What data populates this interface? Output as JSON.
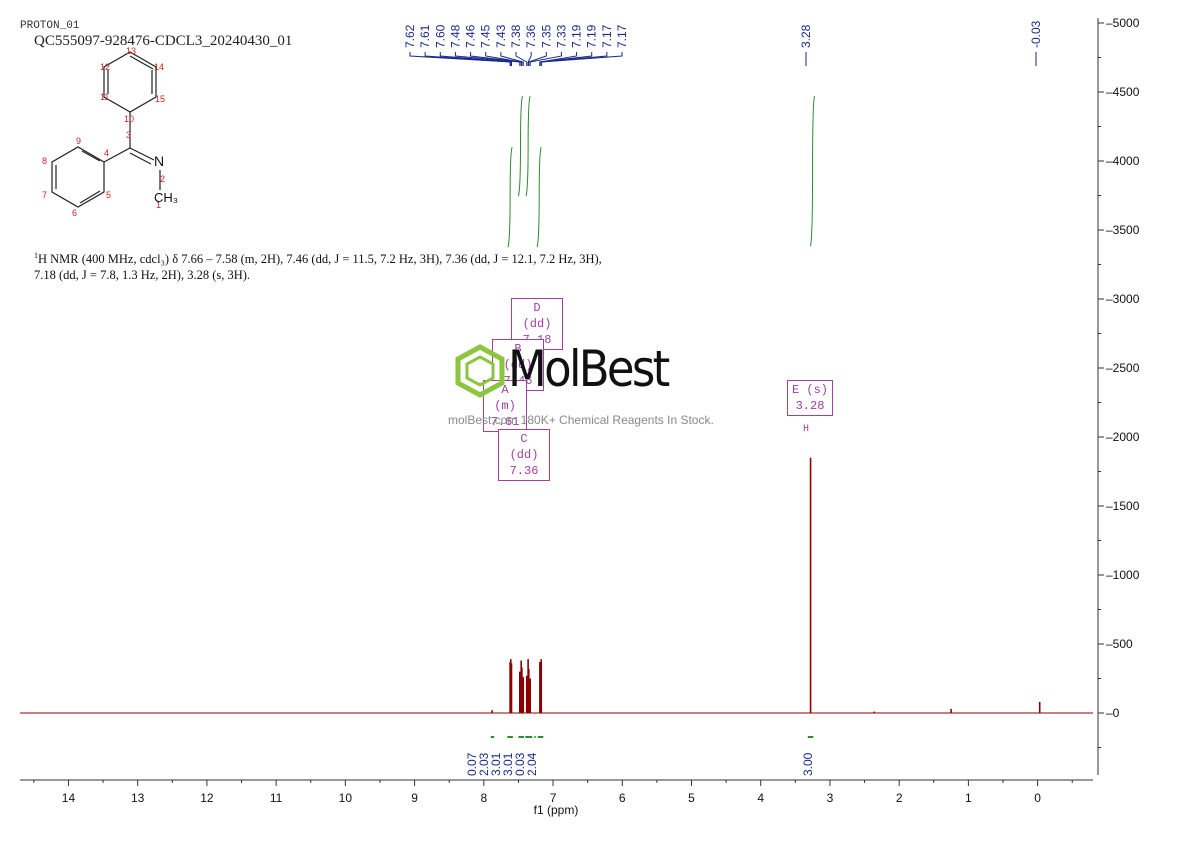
{
  "header": {
    "experiment": "PROTON_01",
    "sample_id": "QC555097-928476-CDCL3_20240430_01"
  },
  "nmr_description": {
    "nucleus_sup": "1",
    "text": "H NMR (400 MHz, cdcl₃) δ 7.66 – 7.58 (m, 2H), 7.46 (dd, J = 11.5, 7.2 Hz, 3H), 7.36 (dd, J = 12.1, 7.2 Hz, 3H), 7.18 (dd, J = 7.8, 1.3 Hz, 2H), 3.28 (s, 3H)."
  },
  "structure": {
    "atom_labels": [
      "1",
      "2",
      "3",
      "4",
      "5",
      "6",
      "7",
      "8",
      "9",
      "10",
      "11",
      "12",
      "13",
      "14",
      "15"
    ],
    "heteroatom": "N",
    "methyl": "CH₃"
  },
  "multiplet_boxes": [
    {
      "id": "D",
      "label": "D (dd)",
      "shift": "7.18"
    },
    {
      "id": "B",
      "label": "B (dd)",
      "shift": "7.46"
    },
    {
      "id": "A",
      "label": "A (m)",
      "shift": "7.61"
    },
    {
      "id": "C",
      "label": "C (dd)",
      "shift": "7.36"
    },
    {
      "id": "E",
      "label": "E (s)",
      "shift": "3.28"
    }
  ],
  "watermark": {
    "brand": "MolBest",
    "tagline": "molBest.com 180K+ Chemical Reagents In Stock."
  },
  "colors": {
    "spectrum": "#8b0000",
    "peak_labels": "#1a2a8a",
    "integral": "#2e8b2e",
    "boxes": "#a040a0",
    "atom_numbers": "#cc2222",
    "watermark_green": "#8cc63f"
  },
  "chart_data": {
    "type": "line",
    "title": "",
    "xlabel": "f1 (ppm)",
    "ylabel": "",
    "x_reversed": true,
    "xlim": [
      14.7,
      -0.8
    ],
    "ylim": [
      -500,
      5000
    ],
    "x_ticks": [
      14,
      13,
      12,
      11,
      10,
      9,
      8,
      7,
      6,
      5,
      4,
      3,
      2,
      1,
      0
    ],
    "y_ticks": [
      0,
      500,
      1000,
      1500,
      2000,
      2500,
      3000,
      3500,
      4000,
      4500,
      5000
    ],
    "peak_labels": [
      "7.62",
      "7.61",
      "7.60",
      "7.48",
      "7.46",
      "7.45",
      "7.43",
      "7.38",
      "7.36",
      "7.35",
      "7.33",
      "7.19",
      "7.19",
      "7.17",
      "7.17",
      "3.28",
      "-0.03"
    ],
    "peaks": [
      {
        "ppm": 7.62,
        "height": 370
      },
      {
        "ppm": 7.61,
        "height": 390
      },
      {
        "ppm": 7.6,
        "height": 360
      },
      {
        "ppm": 7.48,
        "height": 300
      },
      {
        "ppm": 7.46,
        "height": 380
      },
      {
        "ppm": 7.45,
        "height": 330
      },
      {
        "ppm": 7.43,
        "height": 260
      },
      {
        "ppm": 7.38,
        "height": 270
      },
      {
        "ppm": 7.36,
        "height": 390
      },
      {
        "ppm": 7.35,
        "height": 320
      },
      {
        "ppm": 7.33,
        "height": 250
      },
      {
        "ppm": 7.19,
        "height": 370
      },
      {
        "ppm": 7.17,
        "height": 390
      },
      {
        "ppm": 3.28,
        "height": 1850
      },
      {
        "ppm": -0.03,
        "height": 80
      },
      {
        "ppm": 7.88,
        "height": 20
      },
      {
        "ppm": 1.25,
        "height": 30
      },
      {
        "ppm": 2.36,
        "height": 10
      }
    ],
    "integrals": [
      {
        "from": 7.9,
        "to": 7.85,
        "value": "0.07"
      },
      {
        "from": 7.66,
        "to": 7.58,
        "value": "2.03"
      },
      {
        "from": 7.5,
        "to": 7.42,
        "value": "3.01"
      },
      {
        "from": 7.4,
        "to": 7.3,
        "value": "3.01"
      },
      {
        "from": 7.27,
        "to": 7.25,
        "value": "0.03"
      },
      {
        "from": 7.22,
        "to": 7.14,
        "value": "2.04"
      },
      {
        "from": 3.32,
        "to": 3.24,
        "value": "3.00"
      }
    ],
    "integral_curve_heights": [
      4100,
      4470,
      4470,
      4100,
      4470
    ]
  }
}
